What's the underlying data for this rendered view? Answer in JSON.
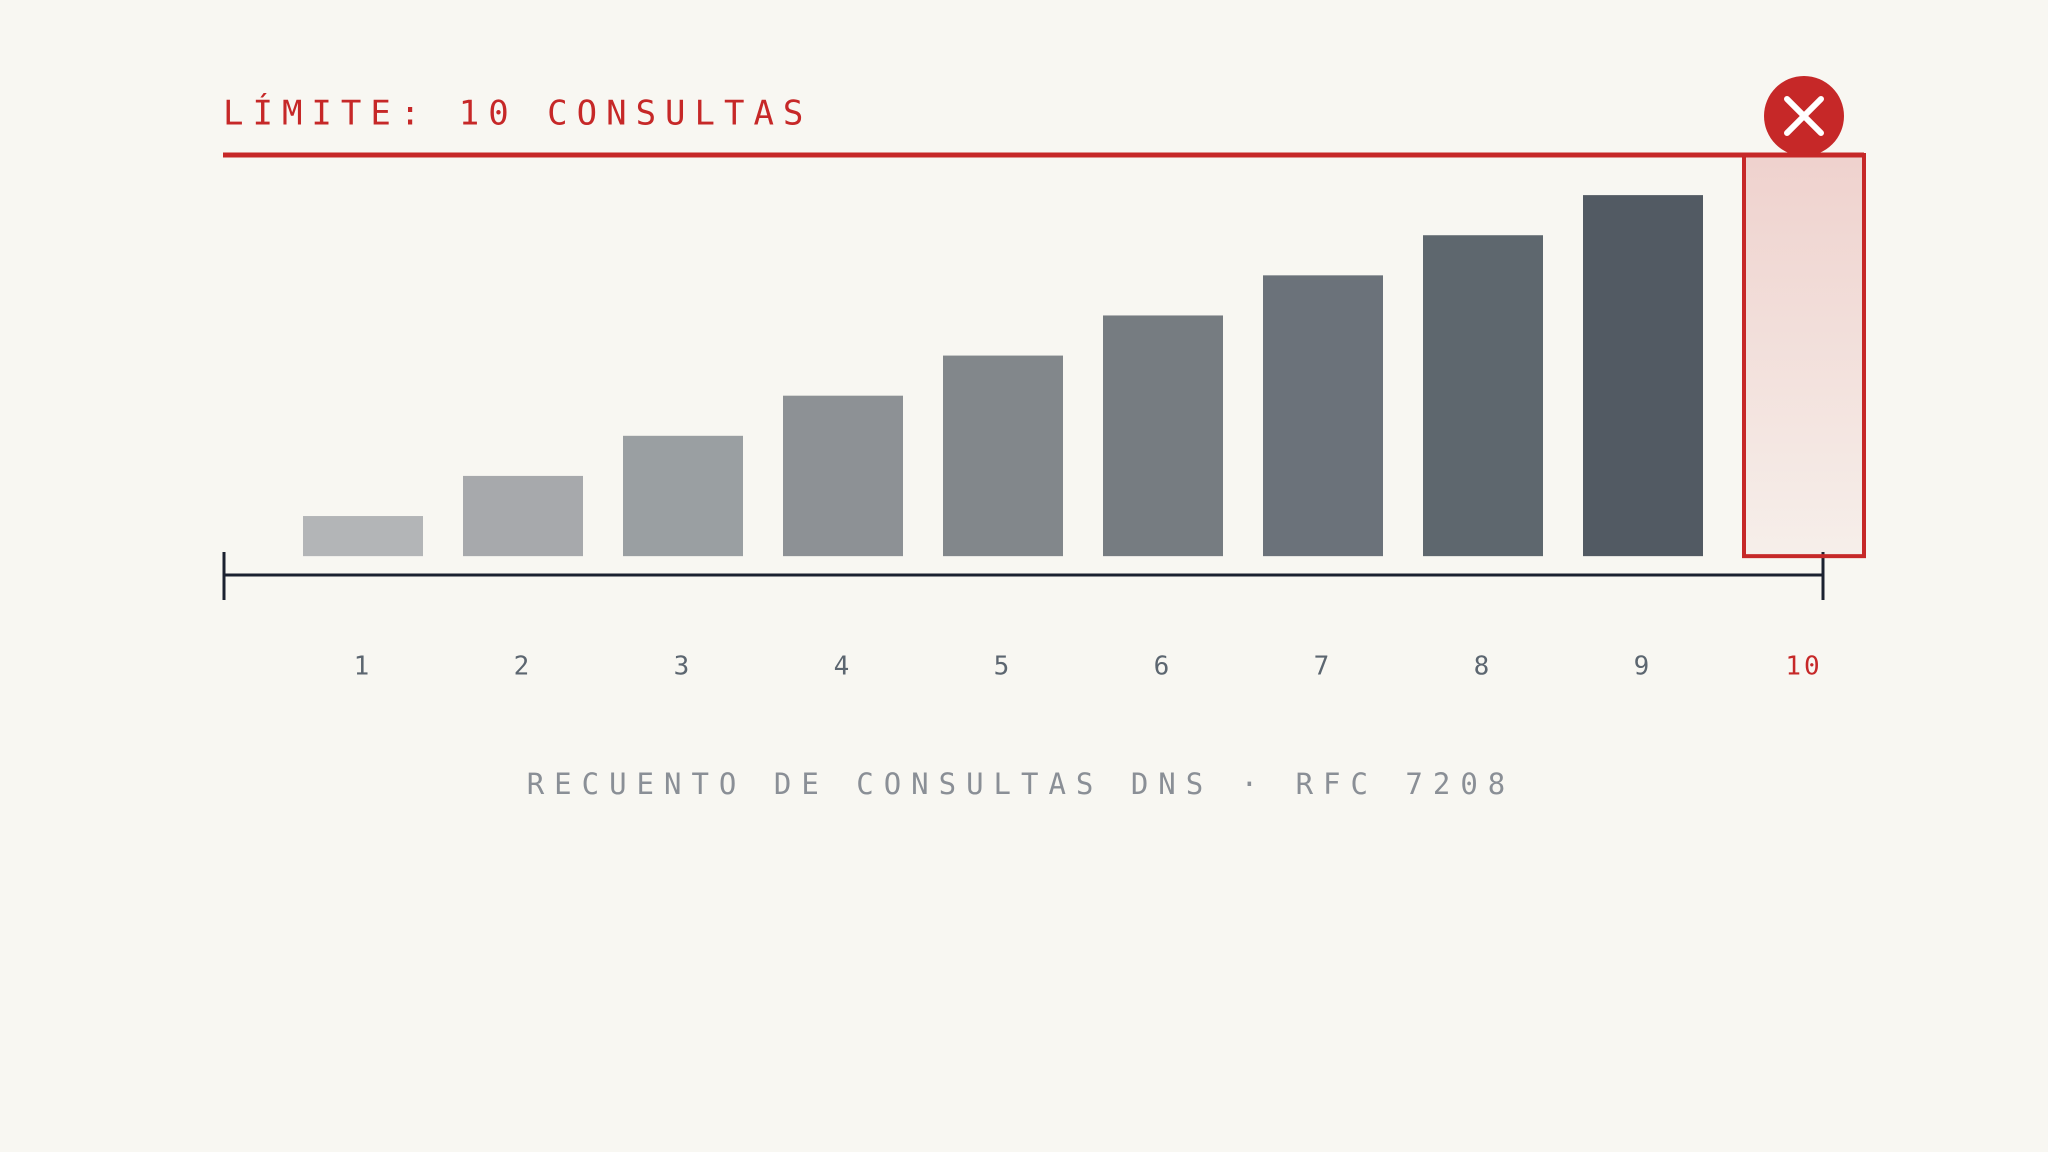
{
  "chart_data": {
    "type": "bar",
    "title": "LÍMITE: 10 CONSULTAS",
    "caption": "RECUENTO DE CONSULTAS DNS · RFC 7208",
    "categories": [
      "1",
      "2",
      "3",
      "4",
      "5",
      "6",
      "7",
      "8",
      "9",
      "10"
    ],
    "values": [
      1,
      2,
      3,
      4,
      5,
      6,
      7,
      8,
      9,
      10
    ],
    "colors": [
      "#b3b5b7",
      "#a7a9ac",
      "#9a9fa2",
      "#8d9195",
      "#82878b",
      "#767c81",
      "#6b727a",
      "#5e676e",
      "#525a63",
      "#c62828"
    ],
    "limit": 10,
    "limit_color": "#c62828",
    "ylim": [
      -0.47,
      10
    ]
  }
}
